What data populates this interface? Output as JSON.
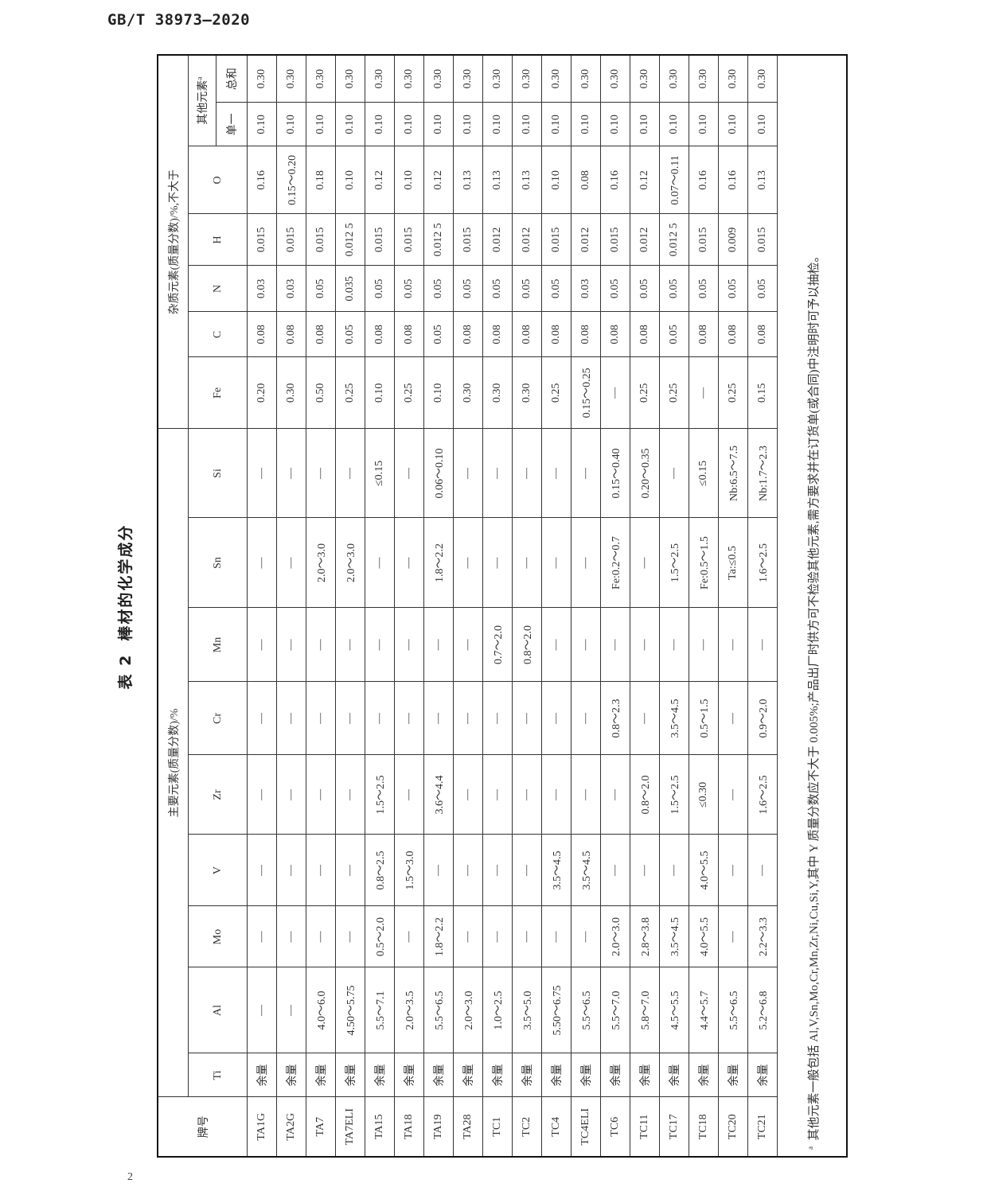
{
  "header": {
    "standard": "GB/T 38973—2020"
  },
  "page_number": "2",
  "table": {
    "title_number": "表 2",
    "title_text": "棒材的化学成分",
    "col_grade": "牌号",
    "group_main": "主要元素(质量分数)/%",
    "group_impurity": "杂质元素(质量分数)/%,不大于",
    "other_elements": "其他元素",
    "other_note_mark": "a",
    "main_columns": [
      "Ti",
      "Al",
      "Mo",
      "V",
      "Zr",
      "Cr",
      "Mn",
      "Sn",
      "Si"
    ],
    "impurity_columns": [
      "Fe",
      "C",
      "N",
      "H",
      "O"
    ],
    "other_columns": [
      "单一",
      "总和"
    ],
    "rows": [
      [
        "TA1G",
        "余量",
        "—",
        "—",
        "—",
        "—",
        "—",
        "—",
        "—",
        "—",
        "0.20",
        "0.08",
        "0.03",
        "0.015",
        "0.16",
        "0.10",
        "0.30"
      ],
      [
        "TA2G",
        "余量",
        "—",
        "—",
        "—",
        "—",
        "—",
        "—",
        "—",
        "—",
        "0.30",
        "0.08",
        "0.03",
        "0.015",
        "0.15～0.20",
        "0.10",
        "0.30"
      ],
      [
        "TA7",
        "余量",
        "4.0～6.0",
        "—",
        "—",
        "—",
        "—",
        "—",
        "2.0～3.0",
        "—",
        "0.50",
        "0.08",
        "0.05",
        "0.015",
        "0.18",
        "0.10",
        "0.30"
      ],
      [
        "TA7ELI",
        "余量",
        "4.50～5.75",
        "—",
        "—",
        "—",
        "—",
        "—",
        "2.0～3.0",
        "—",
        "0.25",
        "0.05",
        "0.035",
        "0.012 5",
        "0.10",
        "0.10",
        "0.30"
      ],
      [
        "TA15",
        "余量",
        "5.5～7.1",
        "0.5～2.0",
        "0.8～2.5",
        "1.5～2.5",
        "—",
        "—",
        "—",
        "≤0.15",
        "0.10",
        "0.08",
        "0.05",
        "0.015",
        "0.12",
        "0.10",
        "0.30"
      ],
      [
        "TA18",
        "余量",
        "2.0～3.5",
        "—",
        "1.5～3.0",
        "—",
        "—",
        "—",
        "—",
        "—",
        "0.25",
        "0.08",
        "0.05",
        "0.015",
        "0.10",
        "0.10",
        "0.30"
      ],
      [
        "TA19",
        "余量",
        "5.5～6.5",
        "1.8～2.2",
        "—",
        "3.6～4.4",
        "—",
        "—",
        "1.8～2.2",
        "0.06～0.10",
        "0.10",
        "0.05",
        "0.05",
        "0.012 5",
        "0.12",
        "0.10",
        "0.30"
      ],
      [
        "TA28",
        "余量",
        "2.0～3.0",
        "—",
        "—",
        "—",
        "—",
        "—",
        "—",
        "—",
        "0.30",
        "0.08",
        "0.05",
        "0.015",
        "0.13",
        "0.10",
        "0.30"
      ],
      [
        "TC1",
        "余量",
        "1.0～2.5",
        "—",
        "—",
        "—",
        "—",
        "0.7～2.0",
        "—",
        "—",
        "0.30",
        "0.08",
        "0.05",
        "0.012",
        "0.13",
        "0.10",
        "0.30"
      ],
      [
        "TC2",
        "余量",
        "3.5～5.0",
        "—",
        "—",
        "—",
        "—",
        "0.8～2.0",
        "—",
        "—",
        "0.30",
        "0.08",
        "0.05",
        "0.012",
        "0.13",
        "0.10",
        "0.30"
      ],
      [
        "TC4",
        "余量",
        "5.50～6.75",
        "—",
        "3.5～4.5",
        "—",
        "—",
        "—",
        "—",
        "—",
        "0.25",
        "0.08",
        "0.05",
        "0.015",
        "0.10",
        "0.10",
        "0.30"
      ],
      [
        "TC4ELI",
        "余量",
        "5.5～6.5",
        "—",
        "3.5～4.5",
        "—",
        "—",
        "—",
        "—",
        "—",
        "0.15～0.25",
        "0.08",
        "0.03",
        "0.012",
        "0.08",
        "0.10",
        "0.30"
      ],
      [
        "TC6",
        "余量",
        "5.5～7.0",
        "2.0～3.0",
        "—",
        "—",
        "0.8～2.3",
        "—",
        "Fe:0.2～0.7",
        "0.15～0.40",
        "—",
        "0.08",
        "0.05",
        "0.015",
        "0.16",
        "0.10",
        "0.30"
      ],
      [
        "TC11",
        "余量",
        "5.8～7.0",
        "2.8～3.8",
        "—",
        "0.8～2.0",
        "—",
        "—",
        "—",
        "0.20～0.35",
        "0.25",
        "0.08",
        "0.05",
        "0.012",
        "0.12",
        "0.10",
        "0.30"
      ],
      [
        "TC17",
        "余量",
        "4.5～5.5",
        "3.5～4.5",
        "—",
        "1.5～2.5",
        "3.5～4.5",
        "—",
        "1.5～2.5",
        "—",
        "0.25",
        "0.05",
        "0.05",
        "0.012 5",
        "0.07～0.11",
        "0.10",
        "0.30"
      ],
      [
        "TC18",
        "余量",
        "4.4～5.7",
        "4.0～5.5",
        "4.0～5.5",
        "≤0.30",
        "0.5～1.5",
        "—",
        "Fe:0.5～1.5",
        "≤0.15",
        "—",
        "0.08",
        "0.05",
        "0.015",
        "0.16",
        "0.10",
        "0.30"
      ],
      [
        "TC20",
        "余量",
        "5.5～6.5",
        "—",
        "—",
        "—",
        "—",
        "—",
        "Ta:≤0.5",
        "Nb:6.5～7.5",
        "0.25",
        "0.08",
        "0.05",
        "0.009",
        "0.16",
        "0.10",
        "0.30"
      ],
      [
        "TC21",
        "余量",
        "5.2～6.8",
        "2.2～3.3",
        "—",
        "1.6～2.5",
        "0.9～2.0",
        "—",
        "1.6～2.5",
        "Nb:1.7～2.3",
        "0.15",
        "0.08",
        "0.05",
        "0.015",
        "0.13",
        "0.10",
        "0.30"
      ]
    ],
    "footnote_mark": "a",
    "footnote": "其他元素一般包括 Al,V,Sn,Mo,Cr,Mn,Zr,Ni,Cu,Si,Y,其中 Y 质量分数应不大于 0.005%;产品出厂时供方可不检验其他元素,需方要求并在订货单(或合同)中注明时可予以抽检。"
  }
}
